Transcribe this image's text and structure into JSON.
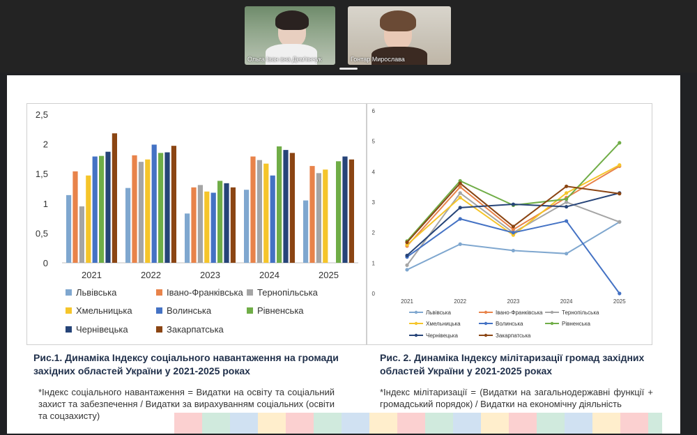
{
  "participants": [
    {
      "name": "Ольга Іван вна Дем'янчук"
    },
    {
      "name": "Гонтар Мирослава"
    }
  ],
  "figure1": {
    "caption": "Рис.1. Динаміка Індексу соціального навантаження на громади західних областей України у 2021-2025 роках",
    "note": "*Індекс соціального навантаження = Видатки на освіту та соціальний захист та забезпечення / Видатки за вирахуванням соціальних (освіти та соцзахисту)"
  },
  "figure2": {
    "caption": "Рис. 2. Динаміка Індексу мілітаризації громад західних областей України у 2021-2025 роках",
    "note": "*Індекс мілітаризації = (Видатки на загальнодержавні функції + громадський порядок) / Видатки на економічну діяльність"
  },
  "colors": {
    "Львівська": "#7fa7cf",
    "Івано-Франківська": "#e8834a",
    "Тернопільська": "#a5a5a5",
    "Хмельницька": "#f5c52a",
    "Волинська": "#4472c4",
    "Рівненська": "#70ad47",
    "Чернівецька": "#264478",
    "Закарпатська": "#8b4513"
  },
  "chart_data": [
    {
      "type": "bar",
      "categories": [
        "2021",
        "2022",
        "2023",
        "2024",
        "2025"
      ],
      "ylim": [
        0,
        2.5
      ],
      "yticks": [
        "0",
        "0,5",
        "1",
        "1,5",
        "2",
        "2,5"
      ],
      "grid": false,
      "legend": "bottom",
      "series": [
        {
          "name": "Львівська",
          "values": [
            1.14,
            1.26,
            0.83,
            1.23,
            1.05
          ]
        },
        {
          "name": "Івано-Франківська",
          "values": [
            1.54,
            1.81,
            1.27,
            1.79,
            1.63
          ]
        },
        {
          "name": "Тернопільська",
          "values": [
            0.95,
            1.7,
            1.31,
            1.73,
            1.51
          ]
        },
        {
          "name": "Хмельницька",
          "values": [
            1.47,
            1.74,
            1.2,
            1.67,
            1.57
          ]
        },
        {
          "name": "Волинська",
          "values": [
            1.79,
            1.99,
            1.18,
            1.47,
            null
          ]
        },
        {
          "name": "Рівненська",
          "values": [
            1.8,
            1.85,
            1.38,
            1.96,
            1.71
          ]
        },
        {
          "name": "Чернівецька",
          "values": [
            1.87,
            1.86,
            1.34,
            1.9,
            1.79
          ]
        },
        {
          "name": "Закарпатська",
          "values": [
            2.18,
            1.97,
            1.27,
            1.85,
            1.74
          ]
        }
      ]
    },
    {
      "type": "line",
      "categories": [
        "2021",
        "2022",
        "2023",
        "2024",
        "2025"
      ],
      "ylim": [
        0,
        6
      ],
      "yticks": [
        "0",
        "1",
        "2",
        "3",
        "4",
        "5",
        "6"
      ],
      "grid": false,
      "legend": "bottom",
      "series": [
        {
          "name": "Львівська",
          "values": [
            0.78,
            1.62,
            1.41,
            1.31,
            2.35
          ]
        },
        {
          "name": "Івано-Франківська",
          "values": [
            1.56,
            3.5,
            2.1,
            3.15,
            4.18
          ]
        },
        {
          "name": "Тернопільська",
          "values": [
            0.93,
            3.3,
            2.0,
            3.0,
            2.35
          ]
        },
        {
          "name": "Хмельницька",
          "values": [
            1.6,
            3.15,
            1.92,
            3.3,
            4.22
          ]
        },
        {
          "name": "Волинська",
          "values": [
            1.2,
            2.45,
            2.0,
            2.38,
            0.0
          ]
        },
        {
          "name": "Рівненська",
          "values": [
            1.72,
            3.7,
            2.9,
            3.1,
            4.95
          ]
        },
        {
          "name": "Чернівецька",
          "values": [
            1.25,
            2.82,
            2.93,
            2.85,
            3.3
          ]
        },
        {
          "name": "Закарпатська",
          "values": [
            1.68,
            3.62,
            2.2,
            3.52,
            3.28
          ]
        }
      ]
    }
  ]
}
